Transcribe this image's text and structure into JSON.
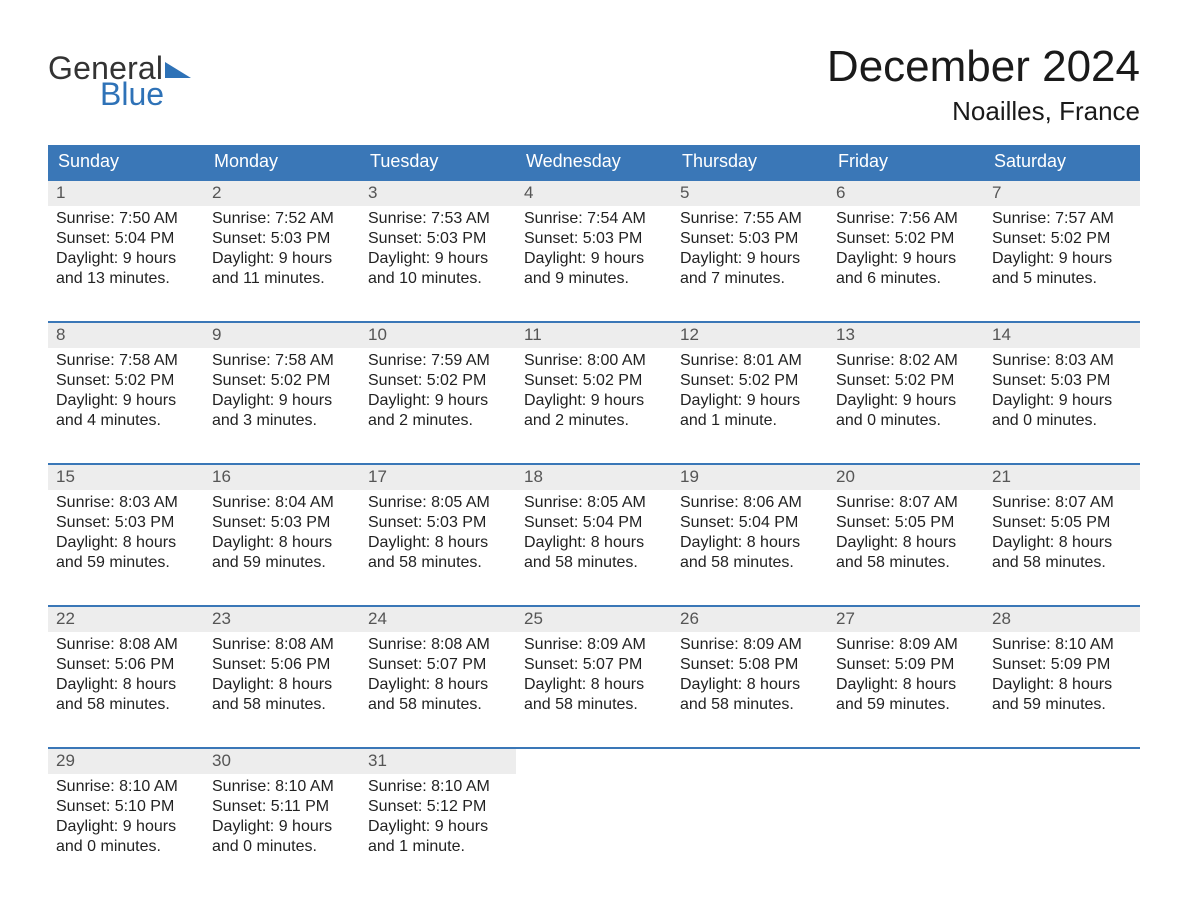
{
  "brand": {
    "word1": "General",
    "word2": "Blue",
    "accent_color": "#2e72b7",
    "text_color": "#333333"
  },
  "title": "December 2024",
  "location": "Noailles, France",
  "colors": {
    "header_bg": "#3a77b7",
    "header_text": "#ffffff",
    "week_border": "#3a77b7",
    "daynum_bg": "#ededed",
    "body_text": "#222222",
    "page_bg": "#ffffff"
  },
  "typography": {
    "title_fontsize": 44,
    "location_fontsize": 26,
    "dow_fontsize": 18,
    "daynum_fontsize": 17,
    "body_fontsize": 16
  },
  "days_of_week": [
    "Sunday",
    "Monday",
    "Tuesday",
    "Wednesday",
    "Thursday",
    "Friday",
    "Saturday"
  ],
  "weeks": [
    [
      {
        "n": "1",
        "sunrise": "Sunrise: 7:50 AM",
        "sunset": "Sunset: 5:04 PM",
        "dl1": "Daylight: 9 hours",
        "dl2": "and 13 minutes."
      },
      {
        "n": "2",
        "sunrise": "Sunrise: 7:52 AM",
        "sunset": "Sunset: 5:03 PM",
        "dl1": "Daylight: 9 hours",
        "dl2": "and 11 minutes."
      },
      {
        "n": "3",
        "sunrise": "Sunrise: 7:53 AM",
        "sunset": "Sunset: 5:03 PM",
        "dl1": "Daylight: 9 hours",
        "dl2": "and 10 minutes."
      },
      {
        "n": "4",
        "sunrise": "Sunrise: 7:54 AM",
        "sunset": "Sunset: 5:03 PM",
        "dl1": "Daylight: 9 hours",
        "dl2": "and 9 minutes."
      },
      {
        "n": "5",
        "sunrise": "Sunrise: 7:55 AM",
        "sunset": "Sunset: 5:03 PM",
        "dl1": "Daylight: 9 hours",
        "dl2": "and 7 minutes."
      },
      {
        "n": "6",
        "sunrise": "Sunrise: 7:56 AM",
        "sunset": "Sunset: 5:02 PM",
        "dl1": "Daylight: 9 hours",
        "dl2": "and 6 minutes."
      },
      {
        "n": "7",
        "sunrise": "Sunrise: 7:57 AM",
        "sunset": "Sunset: 5:02 PM",
        "dl1": "Daylight: 9 hours",
        "dl2": "and 5 minutes."
      }
    ],
    [
      {
        "n": "8",
        "sunrise": "Sunrise: 7:58 AM",
        "sunset": "Sunset: 5:02 PM",
        "dl1": "Daylight: 9 hours",
        "dl2": "and 4 minutes."
      },
      {
        "n": "9",
        "sunrise": "Sunrise: 7:58 AM",
        "sunset": "Sunset: 5:02 PM",
        "dl1": "Daylight: 9 hours",
        "dl2": "and 3 minutes."
      },
      {
        "n": "10",
        "sunrise": "Sunrise: 7:59 AM",
        "sunset": "Sunset: 5:02 PM",
        "dl1": "Daylight: 9 hours",
        "dl2": "and 2 minutes."
      },
      {
        "n": "11",
        "sunrise": "Sunrise: 8:00 AM",
        "sunset": "Sunset: 5:02 PM",
        "dl1": "Daylight: 9 hours",
        "dl2": "and 2 minutes."
      },
      {
        "n": "12",
        "sunrise": "Sunrise: 8:01 AM",
        "sunset": "Sunset: 5:02 PM",
        "dl1": "Daylight: 9 hours",
        "dl2": "and 1 minute."
      },
      {
        "n": "13",
        "sunrise": "Sunrise: 8:02 AM",
        "sunset": "Sunset: 5:02 PM",
        "dl1": "Daylight: 9 hours",
        "dl2": "and 0 minutes."
      },
      {
        "n": "14",
        "sunrise": "Sunrise: 8:03 AM",
        "sunset": "Sunset: 5:03 PM",
        "dl1": "Daylight: 9 hours",
        "dl2": "and 0 minutes."
      }
    ],
    [
      {
        "n": "15",
        "sunrise": "Sunrise: 8:03 AM",
        "sunset": "Sunset: 5:03 PM",
        "dl1": "Daylight: 8 hours",
        "dl2": "and 59 minutes."
      },
      {
        "n": "16",
        "sunrise": "Sunrise: 8:04 AM",
        "sunset": "Sunset: 5:03 PM",
        "dl1": "Daylight: 8 hours",
        "dl2": "and 59 minutes."
      },
      {
        "n": "17",
        "sunrise": "Sunrise: 8:05 AM",
        "sunset": "Sunset: 5:03 PM",
        "dl1": "Daylight: 8 hours",
        "dl2": "and 58 minutes."
      },
      {
        "n": "18",
        "sunrise": "Sunrise: 8:05 AM",
        "sunset": "Sunset: 5:04 PM",
        "dl1": "Daylight: 8 hours",
        "dl2": "and 58 minutes."
      },
      {
        "n": "19",
        "sunrise": "Sunrise: 8:06 AM",
        "sunset": "Sunset: 5:04 PM",
        "dl1": "Daylight: 8 hours",
        "dl2": "and 58 minutes."
      },
      {
        "n": "20",
        "sunrise": "Sunrise: 8:07 AM",
        "sunset": "Sunset: 5:05 PM",
        "dl1": "Daylight: 8 hours",
        "dl2": "and 58 minutes."
      },
      {
        "n": "21",
        "sunrise": "Sunrise: 8:07 AM",
        "sunset": "Sunset: 5:05 PM",
        "dl1": "Daylight: 8 hours",
        "dl2": "and 58 minutes."
      }
    ],
    [
      {
        "n": "22",
        "sunrise": "Sunrise: 8:08 AM",
        "sunset": "Sunset: 5:06 PM",
        "dl1": "Daylight: 8 hours",
        "dl2": "and 58 minutes."
      },
      {
        "n": "23",
        "sunrise": "Sunrise: 8:08 AM",
        "sunset": "Sunset: 5:06 PM",
        "dl1": "Daylight: 8 hours",
        "dl2": "and 58 minutes."
      },
      {
        "n": "24",
        "sunrise": "Sunrise: 8:08 AM",
        "sunset": "Sunset: 5:07 PM",
        "dl1": "Daylight: 8 hours",
        "dl2": "and 58 minutes."
      },
      {
        "n": "25",
        "sunrise": "Sunrise: 8:09 AM",
        "sunset": "Sunset: 5:07 PM",
        "dl1": "Daylight: 8 hours",
        "dl2": "and 58 minutes."
      },
      {
        "n": "26",
        "sunrise": "Sunrise: 8:09 AM",
        "sunset": "Sunset: 5:08 PM",
        "dl1": "Daylight: 8 hours",
        "dl2": "and 58 minutes."
      },
      {
        "n": "27",
        "sunrise": "Sunrise: 8:09 AM",
        "sunset": "Sunset: 5:09 PM",
        "dl1": "Daylight: 8 hours",
        "dl2": "and 59 minutes."
      },
      {
        "n": "28",
        "sunrise": "Sunrise: 8:10 AM",
        "sunset": "Sunset: 5:09 PM",
        "dl1": "Daylight: 8 hours",
        "dl2": "and 59 minutes."
      }
    ],
    [
      {
        "n": "29",
        "sunrise": "Sunrise: 8:10 AM",
        "sunset": "Sunset: 5:10 PM",
        "dl1": "Daylight: 9 hours",
        "dl2": "and 0 minutes."
      },
      {
        "n": "30",
        "sunrise": "Sunrise: 8:10 AM",
        "sunset": "Sunset: 5:11 PM",
        "dl1": "Daylight: 9 hours",
        "dl2": "and 0 minutes."
      },
      {
        "n": "31",
        "sunrise": "Sunrise: 8:10 AM",
        "sunset": "Sunset: 5:12 PM",
        "dl1": "Daylight: 9 hours",
        "dl2": "and 1 minute."
      },
      {
        "empty": true
      },
      {
        "empty": true
      },
      {
        "empty": true
      },
      {
        "empty": true
      }
    ]
  ]
}
